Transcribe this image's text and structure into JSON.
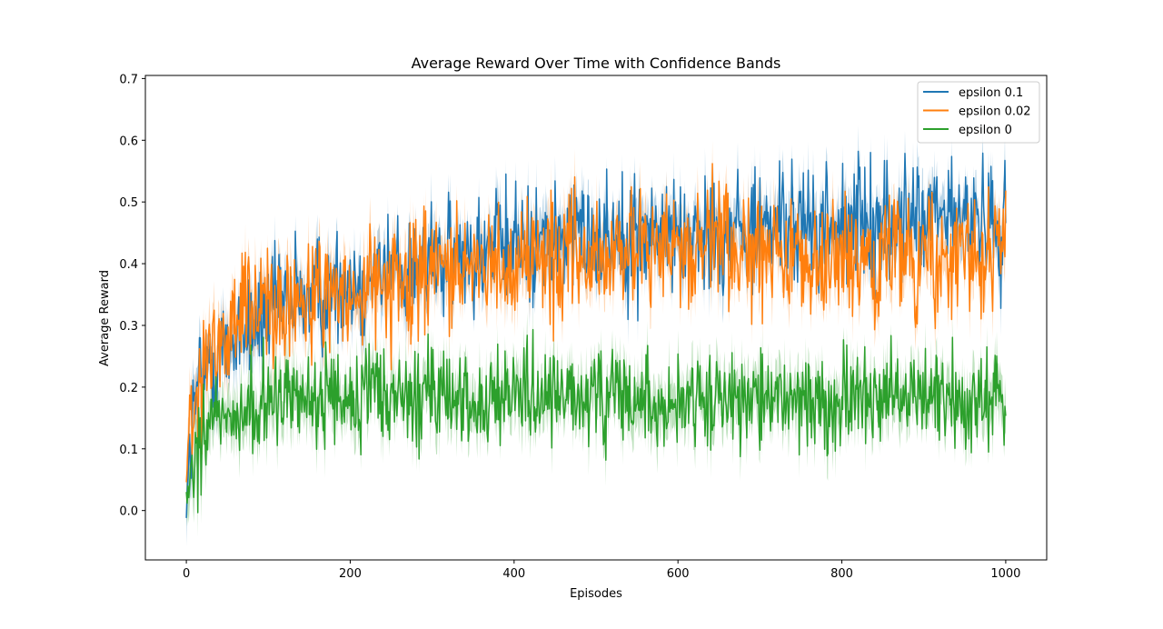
{
  "chart_data": {
    "type": "line",
    "title": "Average Reward Over Time with Confidence Bands",
    "xlabel": "Episodes",
    "ylabel": "Average Reward",
    "xlim": [
      -50,
      1050
    ],
    "ylim": [
      -0.08,
      0.705
    ],
    "xticks": [
      0,
      200,
      400,
      600,
      800,
      1000
    ],
    "yticks": [
      0.0,
      0.1,
      0.2,
      0.3,
      0.4,
      0.5,
      0.6,
      0.7
    ],
    "xtick_labels": [
      "0",
      "200",
      "400",
      "600",
      "800",
      "1000"
    ],
    "ytick_labels": [
      "0.0",
      "0.1",
      "0.2",
      "0.3",
      "0.4",
      "0.5",
      "0.6",
      "0.7"
    ],
    "grid": false,
    "legend_position": "top-right",
    "x_range": [
      0,
      1000
    ],
    "series": [
      {
        "name": "epsilon 0.1",
        "color": "#1f77b4",
        "trend": [
          [
            0,
            0.02
          ],
          [
            5,
            0.12
          ],
          [
            15,
            0.2
          ],
          [
            30,
            0.24
          ],
          [
            50,
            0.27
          ],
          [
            75,
            0.3
          ],
          [
            100,
            0.32
          ],
          [
            150,
            0.35
          ],
          [
            200,
            0.37
          ],
          [
            250,
            0.39
          ],
          [
            300,
            0.4
          ],
          [
            350,
            0.42
          ],
          [
            400,
            0.43
          ],
          [
            450,
            0.44
          ],
          [
            500,
            0.45
          ],
          [
            600,
            0.45
          ],
          [
            700,
            0.46
          ],
          [
            800,
            0.46
          ],
          [
            900,
            0.47
          ],
          [
            1000,
            0.47
          ]
        ],
        "noise": 0.048
      },
      {
        "name": "epsilon 0.02",
        "color": "#ff7f0e",
        "trend": [
          [
            0,
            0.05
          ],
          [
            5,
            0.18
          ],
          [
            15,
            0.22
          ],
          [
            30,
            0.26
          ],
          [
            50,
            0.29
          ],
          [
            75,
            0.31
          ],
          [
            100,
            0.32
          ],
          [
            150,
            0.34
          ],
          [
            200,
            0.36
          ],
          [
            250,
            0.37
          ],
          [
            300,
            0.39
          ],
          [
            350,
            0.4
          ],
          [
            400,
            0.41
          ],
          [
            500,
            0.41
          ],
          [
            600,
            0.42
          ],
          [
            700,
            0.42
          ],
          [
            800,
            0.41
          ],
          [
            900,
            0.41
          ],
          [
            1000,
            0.41
          ]
        ],
        "noise": 0.05
      },
      {
        "name": "epsilon 0",
        "color": "#2ca02c",
        "trend": [
          [
            0,
            0.01
          ],
          [
            5,
            0.05
          ],
          [
            15,
            0.1
          ],
          [
            30,
            0.14
          ],
          [
            50,
            0.16
          ],
          [
            75,
            0.17
          ],
          [
            100,
            0.18
          ],
          [
            200,
            0.18
          ],
          [
            300,
            0.18
          ],
          [
            400,
            0.18
          ],
          [
            500,
            0.18
          ],
          [
            600,
            0.18
          ],
          [
            700,
            0.18
          ],
          [
            800,
            0.18
          ],
          [
            900,
            0.18
          ],
          [
            1000,
            0.18
          ]
        ],
        "noise": 0.04
      }
    ]
  }
}
